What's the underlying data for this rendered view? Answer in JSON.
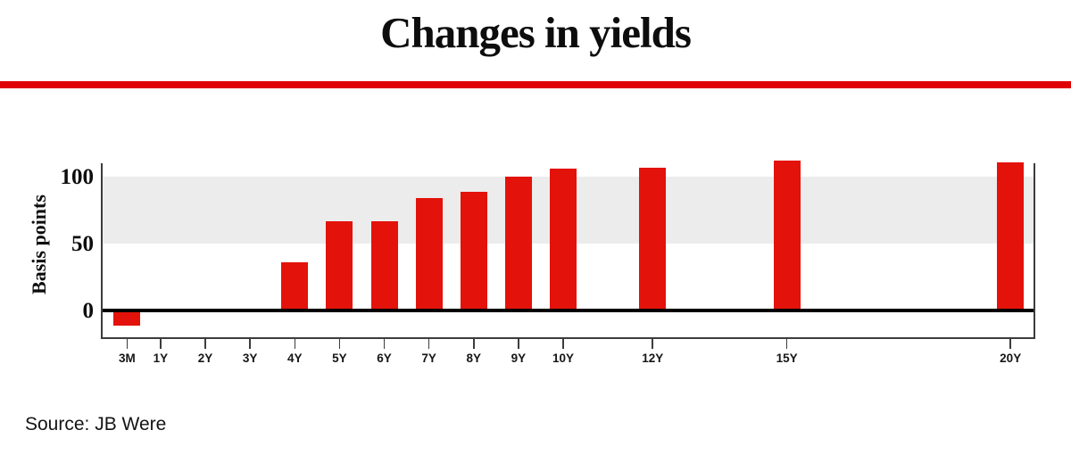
{
  "header": {
    "title": "Changes in yields"
  },
  "source": {
    "label": "Source: JB Were"
  },
  "colors": {
    "bar": "#e3120b",
    "title_rule": "#e00000",
    "band": "#ececec",
    "axis_frame": "#3c3c3c",
    "zero_line": "#000000"
  },
  "chart_data": {
    "type": "bar",
    "title": "Changes in yields",
    "xlabel": "",
    "ylabel": "Basis points",
    "categories": [
      "3M",
      "1Y",
      "2Y",
      "3Y",
      "4Y",
      "5Y",
      "6Y",
      "7Y",
      "8Y",
      "9Y",
      "10Y",
      "12Y",
      "15Y",
      "20Y"
    ],
    "x_years": [
      0.25,
      1,
      2,
      3,
      4,
      5,
      6,
      7,
      8,
      9,
      10,
      12,
      15,
      20
    ],
    "values": [
      -11,
      0,
      0,
      0,
      36,
      67,
      67,
      84,
      89,
      100,
      106,
      107,
      112,
      111
    ],
    "yticks": [
      0,
      50,
      100
    ],
    "ylim": [
      -21,
      115
    ],
    "shaded_band": [
      50,
      100
    ],
    "x_axis_linear_in_years": true,
    "grid": false,
    "legend": false,
    "bar_color": "#e3120b",
    "band_color": "#ececec",
    "source": "Source: JB Were"
  }
}
